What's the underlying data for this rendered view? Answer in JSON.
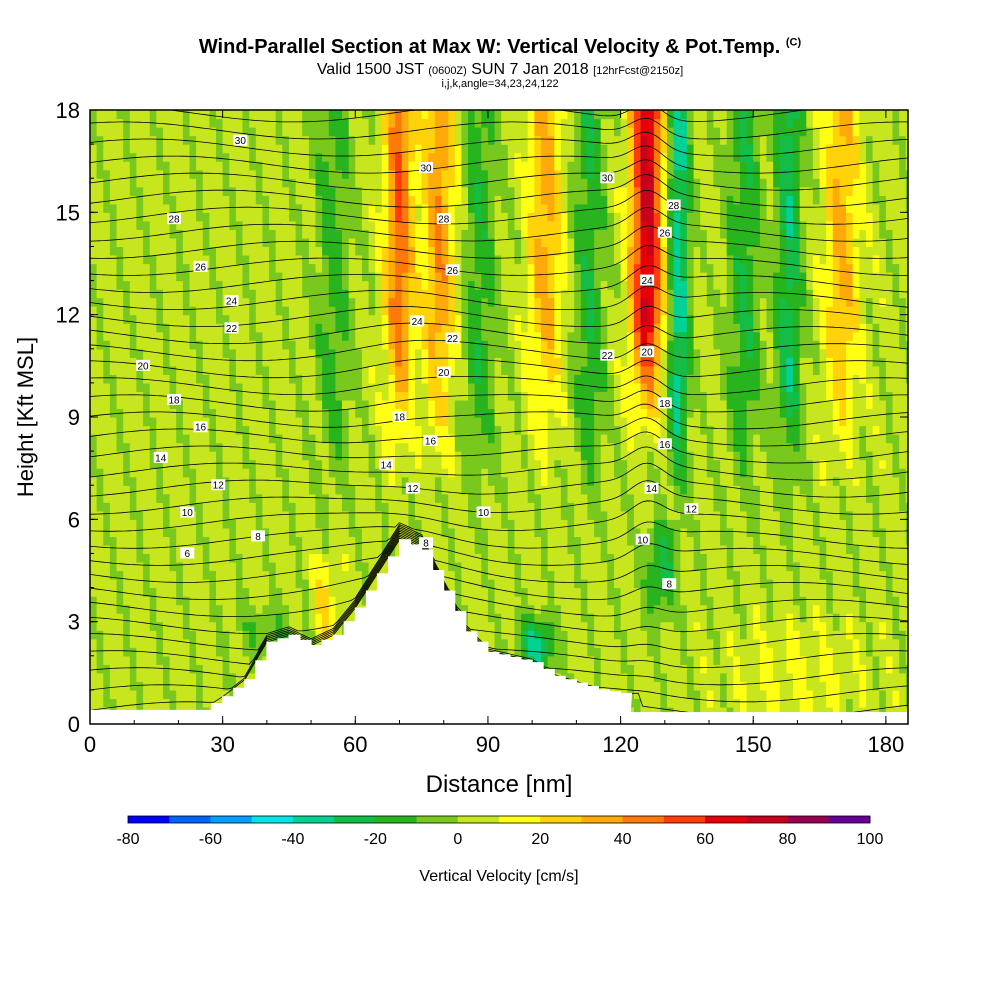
{
  "chart_data": {
    "type": "heatmap",
    "title": "Wind-Parallel Section at Max W: Vertical Velocity & Pot.Temp.",
    "title_tag": "(C)",
    "subtitle_main": "Valid 1500 JST",
    "subtitle_z": "(0600Z)",
    "subtitle_date": "SUN 7 Jan 2018",
    "subtitle_fcst": "[12hrFcst@2150z]",
    "subtitle2": "i,j,k,angle=34,23,24,122",
    "xlabel": "Distance [nm]",
    "ylabel": "Height [Kft MSL]",
    "xlim": [
      0,
      185
    ],
    "ylim": [
      0,
      18
    ],
    "x_ticks": [
      0,
      30,
      60,
      90,
      120,
      150,
      180
    ],
    "y_ticks": [
      0,
      3,
      6,
      9,
      12,
      15,
      18
    ],
    "colorbar": {
      "label": "Vertical Velocity [cm/s]",
      "ticks": [
        -80,
        -60,
        -40,
        -20,
        0,
        20,
        40,
        60,
        80,
        100
      ],
      "colors": [
        "#0000ff",
        "#0064ff",
        "#00a0ff",
        "#00e6e6",
        "#00d296",
        "#14be46",
        "#28b41e",
        "#78c81e",
        "#c8e61e",
        "#ffff14",
        "#ffd20a",
        "#ffaa0a",
        "#ff780a",
        "#ff3c0a",
        "#e6000a",
        "#c8001e",
        "#960050",
        "#640096"
      ]
    },
    "contour_labels": {
      "left": [
        30,
        28,
        26,
        24,
        22,
        20,
        18,
        16,
        14,
        12,
        10,
        8,
        6
      ],
      "middle": [
        30,
        28,
        26,
        24,
        22,
        20,
        18,
        16,
        14,
        12,
        8,
        10
      ],
      "right": [
        30,
        28,
        26,
        24,
        22,
        20,
        18,
        16,
        14,
        12,
        10,
        8
      ]
    },
    "updraft_bands_nm": [
      70,
      79,
      103,
      126,
      170
    ],
    "downdraft_bands_nm": [
      55,
      88,
      113,
      133,
      148,
      158
    ],
    "terrain_kft": [
      [
        0,
        0.4
      ],
      [
        25,
        0.4
      ],
      [
        30,
        0.8
      ],
      [
        35,
        1.3
      ],
      [
        40,
        2.4
      ],
      [
        45,
        2.6
      ],
      [
        50,
        2.3
      ],
      [
        55,
        2.6
      ],
      [
        60,
        3.4
      ],
      [
        65,
        4.4
      ],
      [
        70,
        5.4
      ],
      [
        75,
        5.1
      ],
      [
        80,
        3.9
      ],
      [
        85,
        2.7
      ],
      [
        90,
        2.1
      ],
      [
        100,
        1.8
      ],
      [
        105,
        1.4
      ],
      [
        110,
        1.2
      ],
      [
        115,
        1.0
      ],
      [
        120,
        0.9
      ]
    ]
  }
}
